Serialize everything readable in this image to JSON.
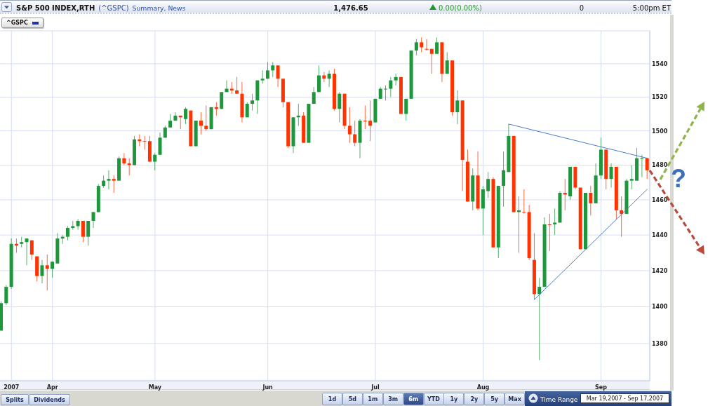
{
  "chart_data": {
    "type": "candlestick",
    "title": "S&P 500 INDEX,RTH",
    "subtitle": "(^GSPC)",
    "log": true,
    "grid": true,
    "legend": "top left",
    "categories": [
      null,
      null,
      "2007",
      null,
      null,
      null,
      null,
      null,
      null,
      null,
      "Apr",
      null,
      null,
      null,
      null,
      null,
      null,
      null,
      null,
      null,
      null,
      null,
      null,
      null,
      null,
      null,
      null,
      null,
      null,
      null,
      "May",
      null,
      null,
      null,
      null,
      null,
      null,
      null,
      null,
      null,
      null,
      null,
      null,
      null,
      null,
      null,
      null,
      null,
      null,
      null,
      null,
      null,
      "Jun",
      null,
      null,
      null,
      null,
      null,
      null,
      null,
      null,
      null,
      null,
      null,
      null,
      null,
      null,
      null,
      null,
      null,
      null,
      null,
      null,
      "Jul",
      null,
      null,
      null,
      null,
      null,
      null,
      null,
      null,
      null,
      null,
      null,
      null,
      null,
      null,
      null,
      null,
      null,
      null,
      null,
      null,
      "Aug",
      null,
      null,
      null,
      null,
      null,
      null,
      null,
      null,
      null,
      null,
      null,
      null,
      null,
      null,
      null,
      null,
      null,
      null,
      null,
      null,
      null,
      null,
      "Sep",
      null,
      null,
      null,
      null,
      null,
      null,
      null,
      null,
      null
    ],
    "ylim": [
      1360,
      1560
    ],
    "yticks": [
      1380,
      1400,
      1420,
      1440,
      1460,
      1480,
      1500,
      1520,
      1540,
      {
        "value": 1560,
        "label": null
      }
    ],
    "series": [
      {
        "name": "^GSPC",
        "color": "#2232a0",
        "ohlc": [
          [
            1387,
            1403,
            1387,
            1402
          ],
          [
            1402,
            1412,
            1401,
            1411
          ],
          [
            1411,
            1438,
            1410,
            1435
          ],
          [
            1435,
            1438,
            1430,
            1434
          ],
          [
            1435,
            1439,
            1433,
            1436
          ],
          [
            1436,
            1438,
            1423,
            1438
          ],
          [
            1437,
            1437,
            1426,
            1429
          ],
          [
            1428,
            1428,
            1414,
            1417
          ],
          [
            1417,
            1426,
            1413,
            1423
          ],
          [
            1423,
            1429,
            1409,
            1421
          ],
          [
            1421,
            1425,
            1416,
            1425
          ],
          [
            1424,
            1441,
            1424,
            1438
          ],
          [
            1438,
            1440,
            1435,
            1439
          ],
          [
            1439,
            1445,
            1437,
            1444
          ],
          [
            1444,
            1448,
            1443,
            1445
          ],
          [
            1445,
            1449,
            1443,
            1448
          ],
          [
            1448,
            1448,
            1436,
            1439
          ],
          [
            1439,
            1448,
            1434,
            1448
          ],
          [
            1448,
            1453,
            1444,
            1453
          ],
          [
            1453,
            1469,
            1453,
            1468
          ],
          [
            1468,
            1474,
            1467,
            1471
          ],
          [
            1471,
            1477,
            1466,
            1472
          ],
          [
            1472,
            1474,
            1464,
            1471
          ],
          [
            1471,
            1485,
            1471,
            1484
          ],
          [
            1484,
            1487,
            1480,
            1481
          ],
          [
            1481,
            1484,
            1474,
            1480
          ],
          [
            1480,
            1497,
            1480,
            1495
          ],
          [
            1495,
            1498,
            1491,
            1494
          ],
          [
            1494,
            1497,
            1489,
            1494
          ],
          [
            1494,
            1497,
            1482,
            1482
          ],
          [
            1482,
            1487,
            1477,
            1486
          ],
          [
            1486,
            1499,
            1486,
            1496
          ],
          [
            1496,
            1503,
            1496,
            1502
          ],
          [
            1502,
            1510,
            1502,
            1506
          ],
          [
            1506,
            1511,
            1506,
            1509
          ],
          [
            1509,
            1509,
            1501,
            1508
          ],
          [
            1507,
            1514,
            1504,
            1513
          ],
          [
            1512,
            1512,
            1491,
            1491
          ],
          [
            1491,
            1506,
            1491,
            1506
          ],
          [
            1506,
            1511,
            1498,
            1503
          ],
          [
            1503,
            1515,
            1500,
            1501
          ],
          [
            1501,
            1514,
            1501,
            1514
          ],
          [
            1514,
            1517,
            1509,
            1513
          ],
          [
            1513,
            1523,
            1513,
            1523
          ],
          [
            1523,
            1530,
            1523,
            1525
          ],
          [
            1525,
            1529,
            1522,
            1524
          ],
          [
            1524,
            1532,
            1522,
            1522
          ],
          [
            1522,
            1529,
            1505,
            1508
          ],
          [
            1508,
            1517,
            1508,
            1516
          ],
          [
            1516,
            1522,
            1512,
            1518
          ],
          [
            1518,
            1530,
            1510,
            1530
          ],
          [
            1530,
            1536,
            1528,
            1531
          ],
          [
            1531,
            1541,
            1531,
            1536
          ],
          [
            1536,
            1541,
            1532,
            1539
          ],
          [
            1539,
            1539,
            1526,
            1531
          ],
          [
            1531,
            1531,
            1514,
            1517
          ],
          [
            1517,
            1517,
            1490,
            1491
          ],
          [
            1491,
            1508,
            1487,
            1508
          ],
          [
            1508,
            1516,
            1503,
            1509
          ],
          [
            1509,
            1511,
            1493,
            1493
          ],
          [
            1493,
            1516,
            1493,
            1516
          ],
          [
            1516,
            1526,
            1516,
            1523
          ],
          [
            1523,
            1539,
            1523,
            1533
          ],
          [
            1533,
            1535,
            1529,
            1531
          ],
          [
            1531,
            1536,
            1526,
            1534
          ],
          [
            1534,
            1537,
            1512,
            1513
          ],
          [
            1513,
            1523,
            1505,
            1522
          ],
          [
            1522,
            1522,
            1501,
            1503
          ],
          [
            1503,
            1514,
            1493,
            1498
          ],
          [
            1498,
            1506,
            1491,
            1493
          ],
          [
            1493,
            1507,
            1484,
            1506
          ],
          [
            1506,
            1515,
            1501,
            1506
          ],
          [
            1506,
            1518,
            1494,
            1503
          ],
          [
            1505,
            1519,
            1505,
            1519
          ],
          [
            1519,
            1526,
            1519,
            1525
          ],
          [
            1525,
            1527,
            1518,
            1525
          ],
          [
            1525,
            1532,
            1520,
            1530
          ],
          [
            1530,
            1534,
            1527,
            1532
          ],
          [
            1532,
            1532,
            1510,
            1510
          ],
          [
            1510,
            1519,
            1506,
            1519
          ],
          [
            1519,
            1548,
            1519,
            1548
          ],
          [
            1548,
            1555,
            1545,
            1553
          ],
          [
            1553,
            1556,
            1547,
            1550
          ],
          [
            1549,
            1555,
            1548,
            1549
          ],
          [
            1549,
            1549,
            1534,
            1546
          ],
          [
            1546,
            1556,
            1546,
            1553
          ],
          [
            1553,
            1553,
            1529,
            1534
          ],
          [
            1534,
            1547,
            1534,
            1542
          ],
          [
            1542,
            1542,
            1509,
            1511
          ],
          [
            1511,
            1524,
            1504,
            1518
          ],
          [
            1518,
            1518,
            1465,
            1483
          ],
          [
            1482,
            1489,
            1459,
            1459
          ],
          [
            1459,
            1478,
            1454,
            1474
          ],
          [
            1474,
            1488,
            1454,
            1455
          ],
          [
            1455,
            1468,
            1440,
            1466
          ],
          [
            1465,
            1476,
            1461,
            1472
          ],
          [
            1472,
            1473,
            1433,
            1433
          ],
          [
            1433,
            1468,
            1427,
            1468
          ],
          [
            1468,
            1488,
            1456,
            1477
          ],
          [
            1476,
            1504,
            1476,
            1497
          ],
          [
            1497,
            1497,
            1453,
            1453
          ],
          [
            1453,
            1462,
            1430,
            1454
          ],
          [
            1453,
            1466,
            1452,
            1453
          ],
          [
            1453,
            1457,
            1426,
            1427
          ],
          [
            1426,
            1441,
            1404,
            1407
          ],
          [
            1407,
            1416,
            1371,
            1411
          ],
          [
            1411,
            1450,
            1411,
            1446
          ],
          [
            1446,
            1452,
            1431,
            1446
          ],
          [
            1446,
            1455,
            1440,
            1447
          ],
          [
            1447,
            1465,
            1447,
            1464
          ],
          [
            1464,
            1472,
            1454,
            1463
          ],
          [
            1462,
            1479,
            1460,
            1479
          ],
          [
            1479,
            1479,
            1466,
            1467
          ],
          [
            1467,
            1467,
            1432,
            1432
          ],
          [
            1432,
            1464,
            1432,
            1464
          ],
          [
            1464,
            1468,
            1451,
            1458
          ],
          [
            1458,
            1481,
            1458,
            1474
          ],
          [
            1474,
            1496,
            1472,
            1489
          ],
          [
            1489,
            1489,
            1466,
            1472
          ],
          [
            1472,
            1481,
            1467,
            1479
          ],
          [
            1479,
            1479,
            1449,
            1454
          ],
          [
            1454,
            1462,
            1439,
            1452
          ],
          [
            1452,
            1472,
            1452,
            1471
          ],
          [
            1471,
            1480,
            1466,
            1472
          ],
          [
            1471,
            1490,
            1471,
            1484
          ],
          [
            1484,
            1486,
            1473,
            1484
          ],
          [
            1484,
            1484,
            1472,
            1477
          ]
        ],
        "colors": [
          "#1e963c",
          "#1e963c",
          "#1e963c",
          "#ff3300",
          "#1e963c",
          "#1e963c",
          "#ff3300",
          "#ff3300",
          "#1e963c",
          "#ff3300",
          "#1e963c",
          "#1e963c",
          "#1e963c",
          "#1e963c",
          "#1e963c",
          "#1e963c",
          "#ff3300",
          "#1e963c",
          "#1e963c",
          "#1e963c",
          "#1e963c",
          "#1e963c",
          "#ff3300",
          "#1e963c",
          "#ff3300",
          "#ff3300",
          "#1e963c",
          "#ff3300",
          "#ff3300",
          "#ff3300",
          "#1e963c",
          "#1e963c",
          "#1e963c",
          "#1e963c",
          "#1e963c",
          "#ff3300",
          "#1e963c",
          "#ff3300",
          "#1e963c",
          "#ff3300",
          "#ff3300",
          "#1e963c",
          "#ff3300",
          "#1e963c",
          "#1e963c",
          "#ff3300",
          "#ff3300",
          "#ff3300",
          "#1e963c",
          "#1e963c",
          "#1e963c",
          "#1e963c",
          "#1e963c",
          "#1e963c",
          "#ff3300",
          "#ff3300",
          "#ff3300",
          "#1e963c",
          "#1e963c",
          "#ff3300",
          "#1e963c",
          "#1e963c",
          "#1e963c",
          "#ff3300",
          "#1e963c",
          "#ff3300",
          "#1e963c",
          "#ff3300",
          "#ff3300",
          "#ff3300",
          "#1e963c",
          "#ff3300",
          "#ff3300",
          "#1e963c",
          "#1e963c",
          "#1e963c",
          "#1e963c",
          "#1e963c",
          "#ff3300",
          "#1e963c",
          "#1e963c",
          "#1e963c",
          "#ff3300",
          "#ff3300",
          "#ff3300",
          "#1e963c",
          "#ff3300",
          "#1e963c",
          "#ff3300",
          "#1e963c",
          "#ff3300",
          "#ff3300",
          "#1e963c",
          "#ff3300",
          "#1e963c",
          "#1e963c",
          "#ff3300",
          "#1e963c",
          "#1e963c",
          "#1e963c",
          "#ff3300",
          "#1e963c",
          "#ff3300",
          "#ff3300",
          "#ff3300",
          "#1e963c",
          "#1e963c",
          "#ff3300",
          "#1e963c",
          "#1e963c",
          "#ff3300",
          "#1e963c",
          "#ff3300",
          "#ff3300",
          "#1e963c",
          "#ff3300",
          "#1e963c",
          "#1e963c",
          "#ff3300",
          "#1e963c",
          "#ff3300",
          "#ff3300",
          "#1e963c",
          "#1e963c",
          "#1e963c",
          "#1e963c",
          "#ff3300"
        ]
      },
      {
        "type": "line",
        "color": "#4a7acb",
        "values": [
          null,
          null,
          null,
          null,
          null,
          null,
          null,
          null,
          null,
          null,
          null,
          null,
          null,
          null,
          null,
          null,
          null,
          null,
          null,
          null,
          null,
          null,
          null,
          null,
          null,
          null,
          null,
          null,
          null,
          null,
          null,
          null,
          null,
          null,
          null,
          null,
          null,
          null,
          null,
          null,
          null,
          null,
          null,
          null,
          null,
          null,
          null,
          null,
          null,
          null,
          null,
          null,
          null,
          null,
          null,
          null,
          null,
          null,
          null,
          null,
          null,
          null,
          null,
          null,
          null,
          null,
          null,
          null,
          null,
          null,
          null,
          null,
          null,
          null,
          null,
          null,
          null,
          null,
          null,
          null,
          null,
          null,
          null,
          null,
          null,
          null,
          null,
          null,
          null,
          null,
          null,
          null,
          null,
          null,
          null,
          null,
          null,
          null,
          null,
          1504,
          null,
          null,
          null,
          null,
          null,
          null,
          null,
          null,
          null,
          null,
          null,
          null,
          null,
          null,
          null,
          null,
          null,
          null,
          null,
          null,
          null,
          null,
          null,
          null,
          null,
          null,
          1484
        ]
      },
      {
        "type": "line",
        "color": "#4a7acb",
        "values": [
          null,
          null,
          null,
          null,
          null,
          null,
          null,
          null,
          null,
          null,
          null,
          null,
          null,
          null,
          null,
          null,
          null,
          null,
          null,
          null,
          null,
          null,
          null,
          null,
          null,
          null,
          null,
          null,
          null,
          null,
          null,
          null,
          null,
          null,
          null,
          null,
          null,
          null,
          null,
          null,
          null,
          null,
          null,
          null,
          null,
          null,
          null,
          null,
          null,
          null,
          null,
          null,
          null,
          null,
          null,
          null,
          null,
          null,
          null,
          null,
          null,
          null,
          null,
          null,
          null,
          null,
          null,
          null,
          null,
          null,
          null,
          null,
          null,
          null,
          null,
          null,
          null,
          null,
          null,
          null,
          null,
          null,
          null,
          null,
          null,
          null,
          null,
          null,
          null,
          null,
          null,
          null,
          null,
          null,
          null,
          null,
          null,
          null,
          null,
          null,
          null,
          null,
          null,
          null,
          1404,
          null,
          null,
          null,
          null,
          null,
          null,
          null,
          null,
          null,
          null,
          null,
          null,
          null,
          null,
          null,
          null,
          null,
          null,
          null,
          null,
          null,
          1466
        ]
      }
    ],
    "annotations": [
      "Summary, News",
      "1,476.65",
      "0.00(0.00%)",
      "0",
      "5:00pm ET",
      "Splits",
      "Dividends",
      "1d",
      "5d",
      "1m",
      "3m",
      "6m",
      "YTD",
      "1y",
      "2y",
      "5y",
      "Max",
      "Time Range",
      "Mar 19,2007 - Sep 17,2007",
      "?"
    ]
  }
}
